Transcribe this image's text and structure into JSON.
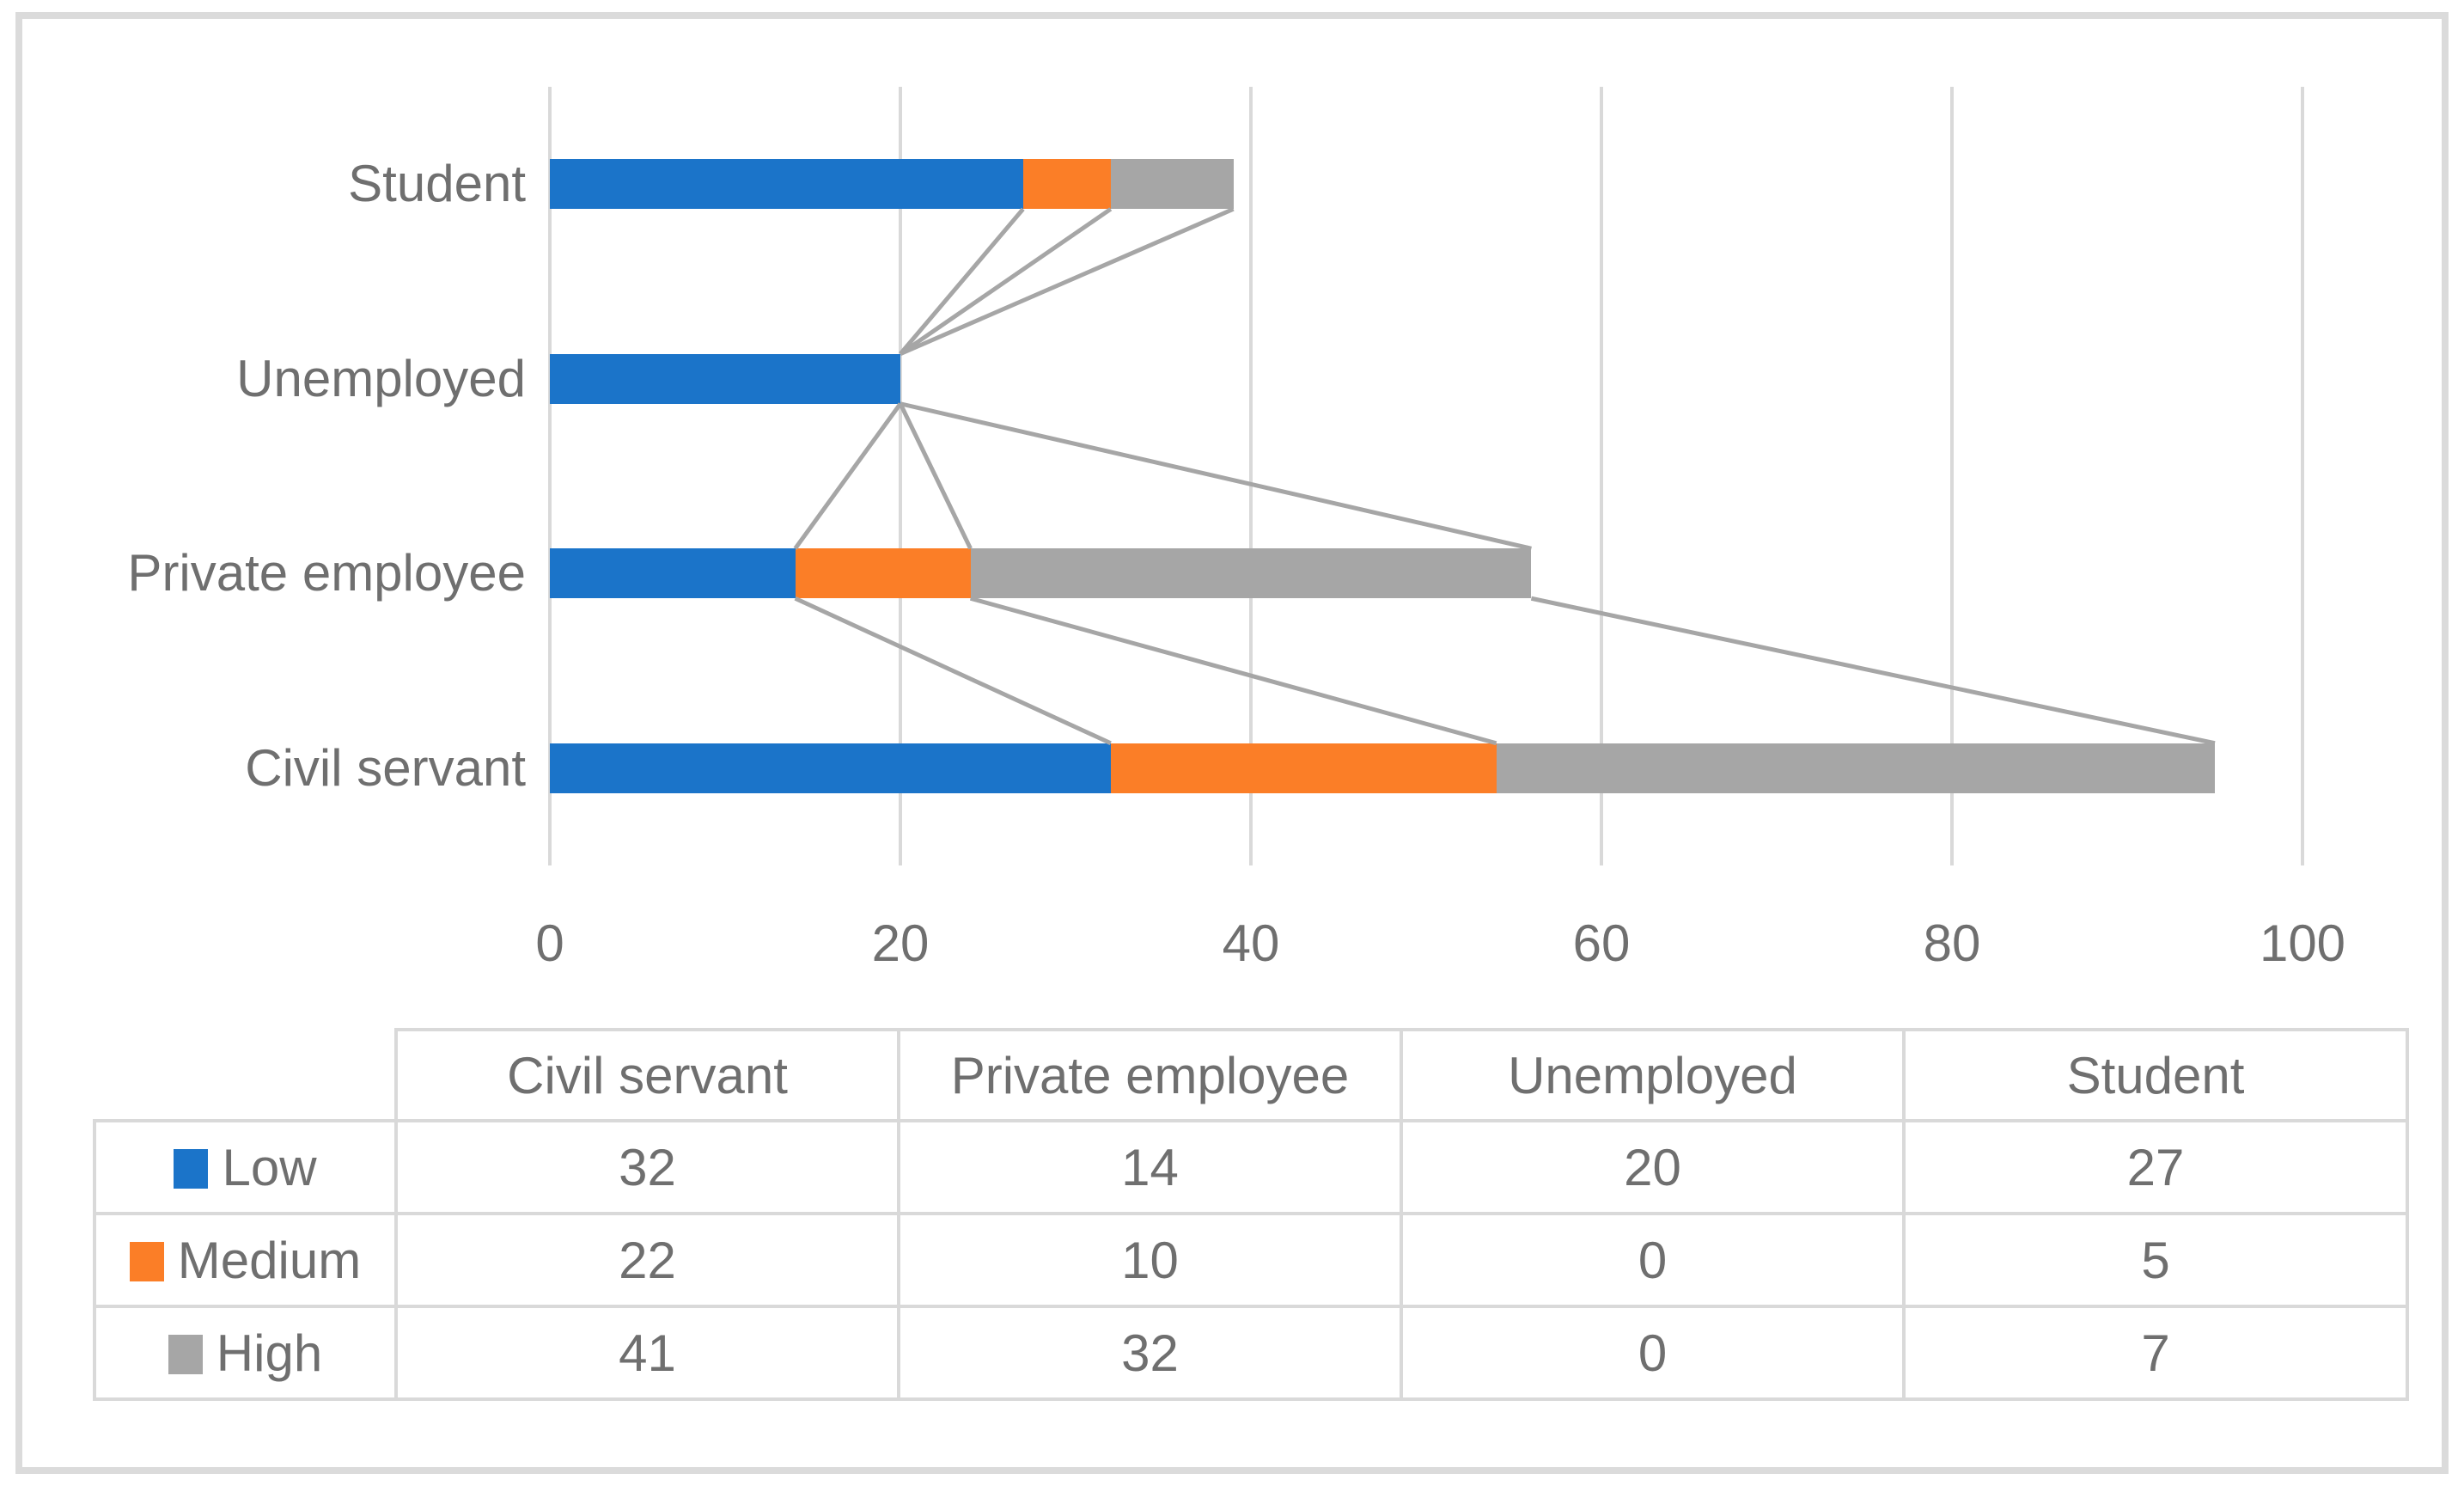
{
  "chart_data": {
    "type": "bar",
    "orientation": "horizontal",
    "stacked": true,
    "title": "",
    "xlabel": "",
    "ylabel": "",
    "categories": [
      "Civil servant",
      "Private employee",
      "Unemployed",
      "Student"
    ],
    "display_order_top_to_bottom": [
      "Student",
      "Unemployed",
      "Private employee",
      "Civil servant"
    ],
    "series": [
      {
        "name": "Low",
        "color": "#1B74C9",
        "values": [
          32,
          14,
          20,
          27
        ]
      },
      {
        "name": "Medium",
        "color": "#FB7E27",
        "values": [
          22,
          10,
          0,
          5
        ]
      },
      {
        "name": "High",
        "color": "#A6A6A6",
        "values": [
          41,
          32,
          0,
          7
        ]
      }
    ],
    "xlim": [
      0,
      100
    ],
    "xticks": [
      0,
      20,
      40,
      60,
      80,
      100
    ],
    "grid": "vertical",
    "series_lines": true,
    "legend_position": "table-left-keys",
    "colors": {
      "gridline": "#D9D9D9",
      "table_border": "#D9D9D9",
      "frame_border": "#DBDBDB",
      "text": "#6F6F6F",
      "series_line": "#A6A6A6",
      "background": "#FFFFFF"
    }
  }
}
